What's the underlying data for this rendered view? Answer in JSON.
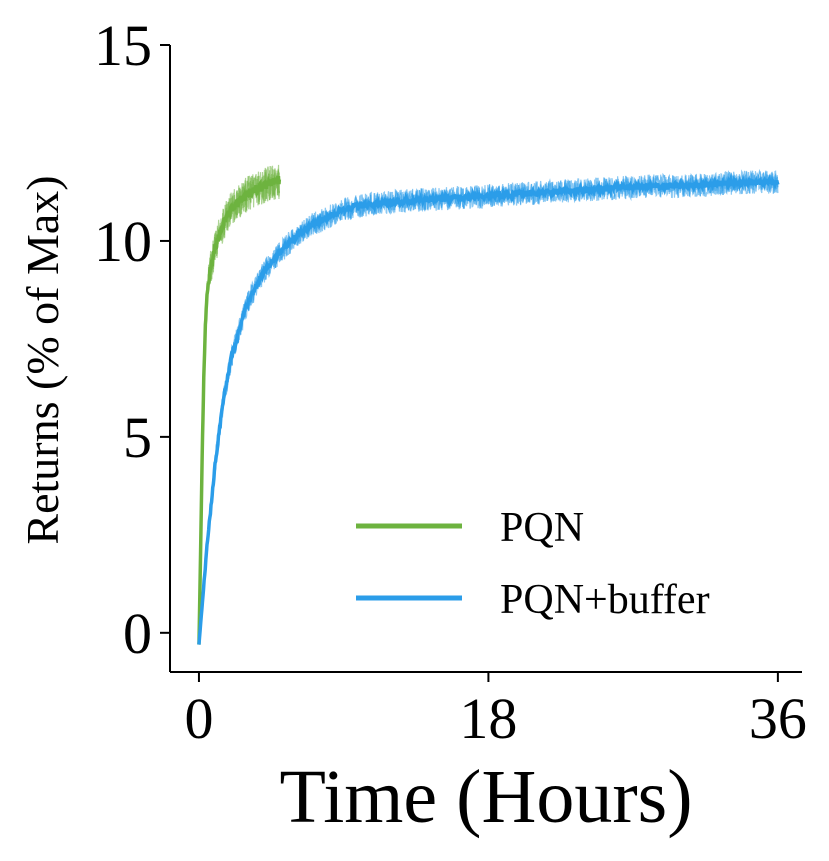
{
  "chart_data": {
    "type": "line",
    "title": "",
    "xlabel": "Time (Hours)",
    "ylabel": "Returns (% of Max)",
    "xlim": [
      -1.8,
      37.5
    ],
    "ylim": [
      -1.0,
      15.0
    ],
    "xticks": [
      0,
      18,
      36
    ],
    "xtick_labels": [
      "0",
      "18",
      "36"
    ],
    "yticks": [
      0,
      5,
      10,
      15
    ],
    "ytick_labels": [
      "0",
      "5",
      "10",
      "15"
    ],
    "grid": false,
    "legend_position": "lower-right",
    "series": [
      {
        "name": "PQN",
        "color": "#6db33f",
        "noise": 0.45,
        "x": [
          0,
          0.1,
          0.2,
          0.3,
          0.4,
          0.5,
          0.7,
          1.0,
          1.3,
          1.6,
          2.0,
          2.5,
          3.0,
          3.5,
          4.0,
          4.5,
          5.0
        ],
        "y": [
          -0.3,
          2.0,
          4.5,
          6.5,
          7.8,
          8.6,
          9.3,
          9.8,
          10.2,
          10.5,
          10.8,
          11.0,
          11.2,
          11.3,
          11.4,
          11.5,
          11.5
        ]
      },
      {
        "name": "PQN+buffer",
        "color": "#2b9de9",
        "noise": 0.3,
        "x": [
          0,
          0.5,
          1.0,
          1.5,
          2.0,
          3.0,
          4.0,
          5.0,
          6.0,
          7.0,
          8.0,
          9.0,
          10.0,
          12.0,
          14.0,
          16.0,
          18.0,
          20.0,
          22.0,
          24.0,
          26.0,
          28.0,
          30.0,
          32.0,
          34.0,
          36.0
        ],
        "y": [
          -0.3,
          2.2,
          4.3,
          5.9,
          7.0,
          8.4,
          9.2,
          9.7,
          10.1,
          10.4,
          10.6,
          10.8,
          10.9,
          11.0,
          11.05,
          11.1,
          11.15,
          11.2,
          11.25,
          11.3,
          11.35,
          11.4,
          11.4,
          11.45,
          11.5,
          11.5
        ]
      }
    ]
  }
}
